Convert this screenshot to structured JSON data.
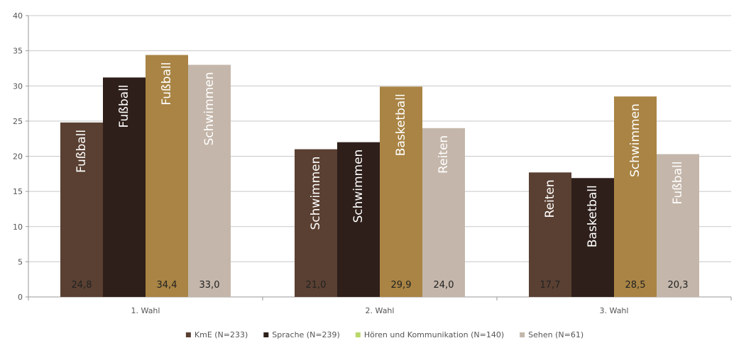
{
  "chart_data": {
    "type": "bar",
    "title": "",
    "xlabel": "",
    "ylabel": "",
    "ylim": [
      0,
      40
    ],
    "yticks": [
      0,
      5,
      10,
      15,
      20,
      25,
      30,
      35,
      40
    ],
    "grid": true,
    "legend_position": "bottom",
    "categories": [
      "1. Wahl",
      "2. Wahl",
      "3. Wahl"
    ],
    "series": [
      {
        "name": "KmE (N=233)",
        "color": "#5a4032",
        "values": [
          24.8,
          21.0,
          17.7
        ],
        "bar_labels": [
          "Fußball",
          "Schwimmen",
          "Reiten"
        ],
        "value_labels": [
          "24,8",
          "21,0",
          "17,7"
        ]
      },
      {
        "name": "Sprache (N=239)",
        "color": "#2e1f1a",
        "values": [
          31.2,
          22.0,
          16.9
        ],
        "bar_labels": [
          "Fußball",
          "Schwimmen",
          "Basketball"
        ],
        "value_labels": [
          "",
          "",
          ""
        ]
      },
      {
        "name": "Hören und Kommunikation (N=140)",
        "color": "#a98444",
        "values": [
          34.4,
          29.9,
          28.5
        ],
        "bar_labels": [
          "Fußball",
          "Basketball",
          "Schwimmen"
        ],
        "value_labels": [
          "34,4",
          "29,9",
          "28,5"
        ]
      },
      {
        "name": "Sehen (N=61)",
        "color": "#c4b6aa",
        "values": [
          33.0,
          24.0,
          20.3
        ],
        "bar_labels": [
          "Schwimmen",
          "Reiten",
          "Fußball"
        ],
        "value_labels": [
          "33,0",
          "24,0",
          "20,3"
        ]
      }
    ],
    "legend_colors": [
      "#5a4032",
      "#2e1f1a",
      "#b8d86a",
      "#c4b6aa"
    ]
  }
}
